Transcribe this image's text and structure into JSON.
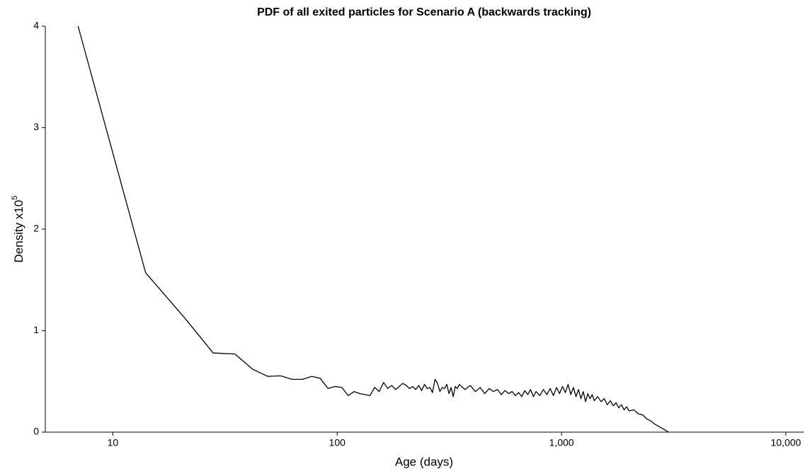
{
  "chart_data": {
    "type": "line",
    "title": "PDF of all exited particles for Scenario A (backwards tracking)",
    "xlabel": "Age (days)",
    "ylabel": "Density  x10",
    "ylabel_exponent": "5",
    "xscale": "log",
    "grid": false,
    "xlim": [
      5,
      12000
    ],
    "ylim": [
      0,
      4
    ],
    "xticks": [
      10,
      100,
      {
        "value": 1000,
        "label": "1,000"
      },
      {
        "value": 10000,
        "label": "10,000"
      }
    ],
    "yticks": [
      0,
      1,
      2,
      3,
      4
    ],
    "x": [
      7,
      14,
      21,
      28,
      35,
      42,
      49,
      56,
      63,
      70,
      77,
      84,
      91,
      98,
      105,
      112,
      119,
      126,
      133,
      140,
      147,
      154,
      161,
      168,
      175,
      182,
      189,
      196,
      203,
      210,
      217,
      224,
      231,
      238,
      245,
      252,
      259,
      266,
      273,
      280,
      287,
      294,
      301,
      308,
      315,
      322,
      329,
      336,
      343,
      350,
      371,
      392,
      413,
      434,
      455,
      476,
      497,
      518,
      539,
      560,
      581,
      602,
      623,
      644,
      665,
      686,
      707,
      728,
      749,
      770,
      800,
      830,
      860,
      890,
      920,
      950,
      980,
      1010,
      1040,
      1070,
      1100,
      1130,
      1160,
      1190,
      1220,
      1250,
      1280,
      1310,
      1340,
      1370,
      1400,
      1450,
      1500,
      1550,
      1600,
      1650,
      1700,
      1750,
      1800,
      1850,
      1900,
      1950,
      2000,
      2100,
      2200,
      2300,
      2400,
      2500,
      2600,
      2700,
      2800,
      2900,
      3000
    ],
    "series": [
      {
        "color": "#000000",
        "values": [
          4.0,
          1.57,
          1.12,
          0.78,
          0.77,
          0.62,
          0.55,
          0.555,
          0.52,
          0.52,
          0.55,
          0.53,
          0.43,
          0.45,
          0.44,
          0.36,
          0.4,
          0.38,
          0.37,
          0.36,
          0.44,
          0.4,
          0.49,
          0.43,
          0.46,
          0.42,
          0.45,
          0.48,
          0.46,
          0.43,
          0.45,
          0.42,
          0.46,
          0.41,
          0.47,
          0.43,
          0.44,
          0.39,
          0.52,
          0.48,
          0.4,
          0.44,
          0.43,
          0.47,
          0.38,
          0.44,
          0.35,
          0.45,
          0.43,
          0.47,
          0.42,
          0.46,
          0.4,
          0.44,
          0.38,
          0.43,
          0.4,
          0.42,
          0.37,
          0.41,
          0.38,
          0.4,
          0.36,
          0.39,
          0.35,
          0.41,
          0.37,
          0.42,
          0.35,
          0.4,
          0.36,
          0.42,
          0.37,
          0.43,
          0.36,
          0.44,
          0.38,
          0.45,
          0.39,
          0.47,
          0.37,
          0.44,
          0.35,
          0.42,
          0.33,
          0.4,
          0.3,
          0.38,
          0.33,
          0.37,
          0.31,
          0.35,
          0.3,
          0.33,
          0.27,
          0.31,
          0.26,
          0.29,
          0.24,
          0.27,
          0.22,
          0.25,
          0.21,
          0.22,
          0.18,
          0.17,
          0.13,
          0.11,
          0.08,
          0.06,
          0.04,
          0.02,
          0
        ]
      }
    ]
  }
}
